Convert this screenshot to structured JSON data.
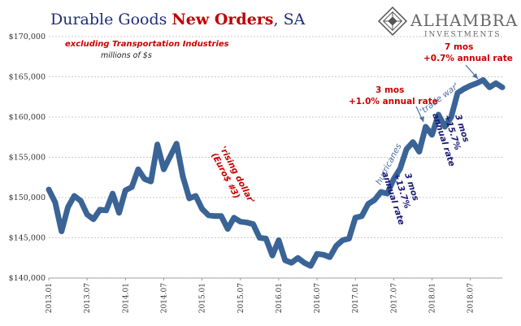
{
  "title": {
    "part1": "Durable Goods ",
    "part2": "New Orders",
    "part3": ", SA"
  },
  "subtitle": {
    "line1": "excluding Transportation  Industries",
    "line2": "millions of $s"
  },
  "logo": {
    "name": "ALHAMBRA",
    "sub": "INVESTMENTS"
  },
  "annotations": {
    "rising_dollar_1": "'rising dollar'",
    "rising_dollar_2": "(Euro$ #3)",
    "hurricanes": "hurricanes",
    "trade_war": "'trade war'",
    "mos3_top_1": "3 mos",
    "mos3_top_2": "+1.0% annual rate",
    "mos7_1": "7 mos",
    "mos7_2": "+0.7% annual rate",
    "mos3_b1_1": "3 mos",
    "mos3_b1_2": "+13.7%",
    "mos3_b1_3": "annual rate",
    "mos3_b2_1": "3 mos",
    "mos3_b2_2": "+15.7%",
    "mos3_b2_3": "annual rate"
  },
  "colors": {
    "line": "#3a6496",
    "title_blue": "#1f2d7a",
    "title_red": "#c00000",
    "annotation_red": "#cc0000",
    "annotation_blue": "#1a1a7a"
  },
  "chart_data": {
    "type": "line",
    "title": "Durable Goods New Orders, SA",
    "subtitle": "excluding Transportation  Industries",
    "ylabel": "millions of $s",
    "ylim": [
      140000,
      170000
    ],
    "yticks": [
      140000,
      145000,
      150000,
      155000,
      160000,
      165000,
      170000
    ],
    "ytick_labels": [
      "$140,000",
      "$145,000",
      "$150,000",
      "$155,000",
      "$160,000",
      "$165,000",
      "$170,000"
    ],
    "xtick_labels": [
      "2013.01",
      "2013.07",
      "2014.01",
      "2014.07",
      "2015.01",
      "2015.07",
      "2016.01",
      "2016.07",
      "2017.01",
      "2017.07",
      "2018.01",
      "2018.07"
    ],
    "x_start": "2013.01",
    "grid": "horizontal",
    "series": [
      {
        "values": [
          151000,
          149400,
          145800,
          148800,
          150200,
          149600,
          147900,
          147300,
          148500,
          148400,
          150500,
          148100,
          150900,
          151300,
          153500,
          152300,
          152000,
          156600,
          153500,
          155100,
          156700,
          152600,
          149900,
          150200,
          148600,
          147800,
          147700,
          147700,
          146100,
          147500,
          147000,
          146900,
          146700,
          145000,
          144900,
          142800,
          144700,
          142200,
          141900,
          142500,
          141900,
          141500,
          143000,
          142900,
          142600,
          144000,
          144700,
          144900,
          147500,
          147700,
          149200,
          149700,
          150700,
          150500,
          152300,
          153600,
          156000,
          156900,
          155700,
          158800,
          157800,
          160300,
          158800,
          160000,
          163000,
          163500,
          163900,
          164200,
          164600,
          163700,
          164200,
          163700
        ]
      }
    ]
  }
}
